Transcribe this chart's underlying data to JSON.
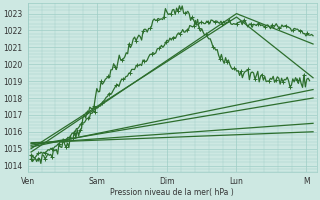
{
  "bg_color": "#cde8e2",
  "grid_color": "#9ecec6",
  "line_color": "#2d6e2d",
  "marker": "+",
  "xlabels": [
    "Ven",
    "Sam",
    "Dim",
    "Lun",
    "M"
  ],
  "xtick_pos": [
    0,
    1,
    2,
    3,
    4
  ],
  "ylabel_ticks": [
    1014,
    1015,
    1016,
    1017,
    1018,
    1019,
    1020,
    1021,
    1022,
    1023
  ],
  "xlabel_text": "Pression niveau de la mer( hPa )",
  "ylim": [
    1013.6,
    1023.6
  ],
  "xlim": [
    0,
    4.15
  ],
  "figsize": [
    3.2,
    2.0
  ],
  "dpi": 100,
  "series": [
    {
      "points": [
        [
          0.05,
          1014.3
        ],
        [
          0.25,
          1014.5
        ],
        [
          0.45,
          1015.0
        ],
        [
          0.6,
          1015.5
        ],
        [
          0.75,
          1016.2
        ],
        [
          0.85,
          1017.0
        ],
        [
          0.95,
          1017.8
        ],
        [
          1.05,
          1018.6
        ],
        [
          1.15,
          1019.3
        ],
        [
          1.25,
          1019.9
        ],
        [
          1.35,
          1020.4
        ],
        [
          1.45,
          1020.9
        ],
        [
          1.55,
          1021.4
        ],
        [
          1.65,
          1021.8
        ],
        [
          1.75,
          1022.2
        ],
        [
          1.85,
          1022.5
        ],
        [
          1.95,
          1022.8
        ],
        [
          2.05,
          1023.1
        ],
        [
          2.15,
          1023.25
        ],
        [
          2.25,
          1023.1
        ],
        [
          2.35,
          1022.8
        ],
        [
          2.45,
          1022.3
        ],
        [
          2.55,
          1021.7
        ],
        [
          2.65,
          1021.2
        ],
        [
          2.75,
          1020.7
        ],
        [
          2.85,
          1020.3
        ],
        [
          2.95,
          1019.9
        ],
        [
          3.05,
          1019.6
        ],
        [
          3.15,
          1019.4
        ],
        [
          3.25,
          1019.3
        ],
        [
          3.35,
          1019.2
        ],
        [
          3.45,
          1019.15
        ],
        [
          3.55,
          1019.1
        ],
        [
          3.65,
          1019.05
        ],
        [
          3.75,
          1019.0
        ],
        [
          3.85,
          1019.0
        ],
        [
          3.95,
          1019.0
        ],
        [
          4.05,
          1019.0
        ]
      ],
      "noise": 0.18,
      "with_marker": true,
      "lw": 0.9
    },
    {
      "points": [
        [
          0.05,
          1014.5
        ],
        [
          0.3,
          1014.9
        ],
        [
          0.55,
          1015.5
        ],
        [
          0.75,
          1016.3
        ],
        [
          0.95,
          1017.2
        ],
        [
          1.15,
          1018.1
        ],
        [
          1.35,
          1019.0
        ],
        [
          1.55,
          1019.8
        ],
        [
          1.75,
          1020.5
        ],
        [
          1.95,
          1021.1
        ],
        [
          2.1,
          1021.6
        ],
        [
          2.25,
          1022.0
        ],
        [
          2.4,
          1022.35
        ],
        [
          2.55,
          1022.5
        ],
        [
          2.7,
          1022.55
        ],
        [
          2.85,
          1022.5
        ],
        [
          3.0,
          1022.45
        ],
        [
          3.1,
          1022.4
        ],
        [
          3.2,
          1022.38
        ],
        [
          3.3,
          1022.35
        ],
        [
          3.4,
          1022.3
        ],
        [
          3.5,
          1022.28
        ],
        [
          3.6,
          1022.25
        ],
        [
          3.7,
          1022.22
        ],
        [
          3.8,
          1022.2
        ],
        [
          3.9,
          1022.0
        ],
        [
          4.0,
          1021.8
        ],
        [
          4.1,
          1021.6
        ]
      ],
      "noise": 0.08,
      "with_marker": true,
      "lw": 0.9
    },
    {
      "points": [
        [
          0.05,
          1014.8
        ],
        [
          3.0,
          1023.0
        ],
        [
          4.1,
          1021.2
        ]
      ],
      "noise": 0.0,
      "with_marker": false,
      "lw": 0.9
    },
    {
      "points": [
        [
          0.05,
          1015.0
        ],
        [
          3.0,
          1022.8
        ],
        [
          4.1,
          1019.2
        ]
      ],
      "noise": 0.0,
      "with_marker": false,
      "lw": 0.9
    },
    {
      "points": [
        [
          0.05,
          1015.1
        ],
        [
          4.1,
          1018.5
        ]
      ],
      "noise": 0.0,
      "with_marker": false,
      "lw": 0.9
    },
    {
      "points": [
        [
          0.05,
          1015.2
        ],
        [
          4.1,
          1018.0
        ]
      ],
      "noise": 0.0,
      "with_marker": false,
      "lw": 0.9
    },
    {
      "points": [
        [
          0.05,
          1015.3
        ],
        [
          4.1,
          1016.5
        ]
      ],
      "noise": 0.0,
      "with_marker": false,
      "lw": 0.9
    },
    {
      "points": [
        [
          0.05,
          1015.35
        ],
        [
          4.1,
          1016.0
        ]
      ],
      "noise": 0.0,
      "with_marker": false,
      "lw": 0.9
    }
  ]
}
